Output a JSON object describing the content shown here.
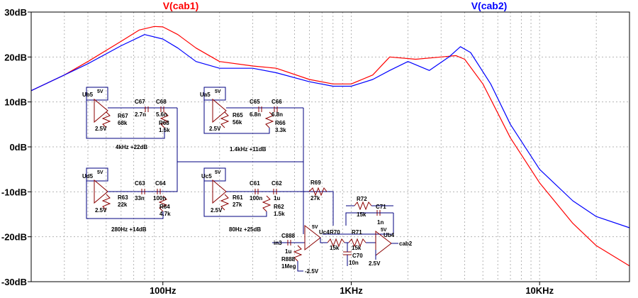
{
  "chart_data": {
    "type": "line",
    "x_scale": "log",
    "xlim": [
      20,
      30000
    ],
    "ylim": [
      -30,
      30
    ],
    "grid": true,
    "x_ticks": [
      {
        "value": 100,
        "label": "100Hz"
      },
      {
        "value": 1000,
        "label": "1KHz"
      },
      {
        "value": 10000,
        "label": "10KHz"
      }
    ],
    "y_ticks": [
      {
        "value": 30,
        "label": "30dB"
      },
      {
        "value": 20,
        "label": "20dB"
      },
      {
        "value": 10,
        "label": "10dB"
      },
      {
        "value": 0,
        "label": "0dB"
      },
      {
        "value": -10,
        "label": "-10dB"
      },
      {
        "value": -20,
        "label": "-20dB"
      },
      {
        "value": -30,
        "label": "-30dB"
      }
    ],
    "series": [
      {
        "name": "V(cab1)",
        "color": "#ff0000",
        "points": [
          [
            20,
            12.5
          ],
          [
            30,
            16
          ],
          [
            40,
            19
          ],
          [
            60,
            23.5
          ],
          [
            75,
            26
          ],
          [
            90,
            26.8
          ],
          [
            100,
            26.7
          ],
          [
            120,
            25
          ],
          [
            150,
            22
          ],
          [
            200,
            19
          ],
          [
            300,
            18
          ],
          [
            400,
            17.5
          ],
          [
            600,
            15
          ],
          [
            800,
            14
          ],
          [
            1000,
            14
          ],
          [
            1300,
            16
          ],
          [
            1600,
            20
          ],
          [
            2200,
            19.5
          ],
          [
            3000,
            20
          ],
          [
            3600,
            20.3
          ],
          [
            4000,
            19.5
          ],
          [
            5000,
            14
          ],
          [
            7000,
            2
          ],
          [
            10000,
            -8
          ],
          [
            15000,
            -17
          ],
          [
            20000,
            -22
          ],
          [
            30000,
            -26.5
          ]
        ]
      },
      {
        "name": "V(cab2)",
        "color": "#0000ff",
        "points": [
          [
            20,
            12.5
          ],
          [
            30,
            16
          ],
          [
            40,
            18.5
          ],
          [
            60,
            22.5
          ],
          [
            80,
            25
          ],
          [
            100,
            24
          ],
          [
            120,
            22
          ],
          [
            150,
            19
          ],
          [
            200,
            17.5
          ],
          [
            300,
            17.5
          ],
          [
            400,
            16.5
          ],
          [
            600,
            14.5
          ],
          [
            800,
            13.5
          ],
          [
            1000,
            13.5
          ],
          [
            1300,
            15
          ],
          [
            1600,
            17
          ],
          [
            2000,
            19
          ],
          [
            2600,
            17
          ],
          [
            3300,
            20
          ],
          [
            3800,
            22.3
          ],
          [
            4300,
            21
          ],
          [
            5500,
            14
          ],
          [
            7000,
            5
          ],
          [
            10000,
            -5
          ],
          [
            15000,
            -12
          ],
          [
            20000,
            -15.5
          ],
          [
            30000,
            -18
          ]
        ]
      }
    ]
  },
  "schematic": {
    "parts": [
      {
        "id": "ub5",
        "label": "Ub5"
      },
      {
        "id": "ua5",
        "label": "Ua5"
      },
      {
        "id": "ud5",
        "label": "Ud5"
      },
      {
        "id": "uc5",
        "label": "Uc5"
      },
      {
        "id": "uc4",
        "label": "Uc4"
      },
      {
        "id": "ub4",
        "label": "Ub4"
      },
      {
        "id": "c67",
        "label": "C67",
        "value": "2.7n"
      },
      {
        "id": "c68",
        "label": "C68",
        "value": "5.6n"
      },
      {
        "id": "r67",
        "label": "R67",
        "value": "68k"
      },
      {
        "id": "r68",
        "label": "R68",
        "value": "1.5k"
      },
      {
        "id": "c65",
        "label": "C65",
        "value": "6.8n"
      },
      {
        "id": "c66",
        "label": "C66",
        "value": "6.8n"
      },
      {
        "id": "r65",
        "label": "R65",
        "value": "56k"
      },
      {
        "id": "r66",
        "label": "R66",
        "value": "3.3k"
      },
      {
        "id": "c63",
        "label": "C63",
        "value": "33n"
      },
      {
        "id": "c64",
        "label": "C64",
        "value": "100n"
      },
      {
        "id": "r63",
        "label": "R63",
        "value": "22k"
      },
      {
        "id": "r64",
        "label": "R64",
        "value": "4.7k"
      },
      {
        "id": "c61",
        "label": "C61",
        "value": "100n"
      },
      {
        "id": "c62",
        "label": "C62",
        "value": "1u"
      },
      {
        "id": "r61",
        "label": "R61",
        "value": "27k"
      },
      {
        "id": "r62",
        "label": "R62",
        "value": "1.5k"
      },
      {
        "id": "r69",
        "label": "R69",
        "value": "27k"
      },
      {
        "id": "r70",
        "label": "R70",
        "value": "15k"
      },
      {
        "id": "r71",
        "label": "R71",
        "value": "15k"
      },
      {
        "id": "r72",
        "label": "R72",
        "value": "15k"
      },
      {
        "id": "c70",
        "label": "C70",
        "value": "10n"
      },
      {
        "id": "c71",
        "label": "C71",
        "value": "1n"
      },
      {
        "id": "c888",
        "label": "C888",
        "value": "1u"
      },
      {
        "id": "r888",
        "label": "R888",
        "value": "1Meg"
      }
    ],
    "supply_pos": "5V",
    "supply_ref": "2.5V",
    "supply_neg": "-2.5V",
    "net_in": "in3",
    "net_out": "cab2",
    "band_labels": {
      "b4k": "4kHz +22dB",
      "b14k": "1.4kHz +11dB",
      "b280": "280Hz +14dB",
      "b80": "80Hz +25dB"
    }
  }
}
